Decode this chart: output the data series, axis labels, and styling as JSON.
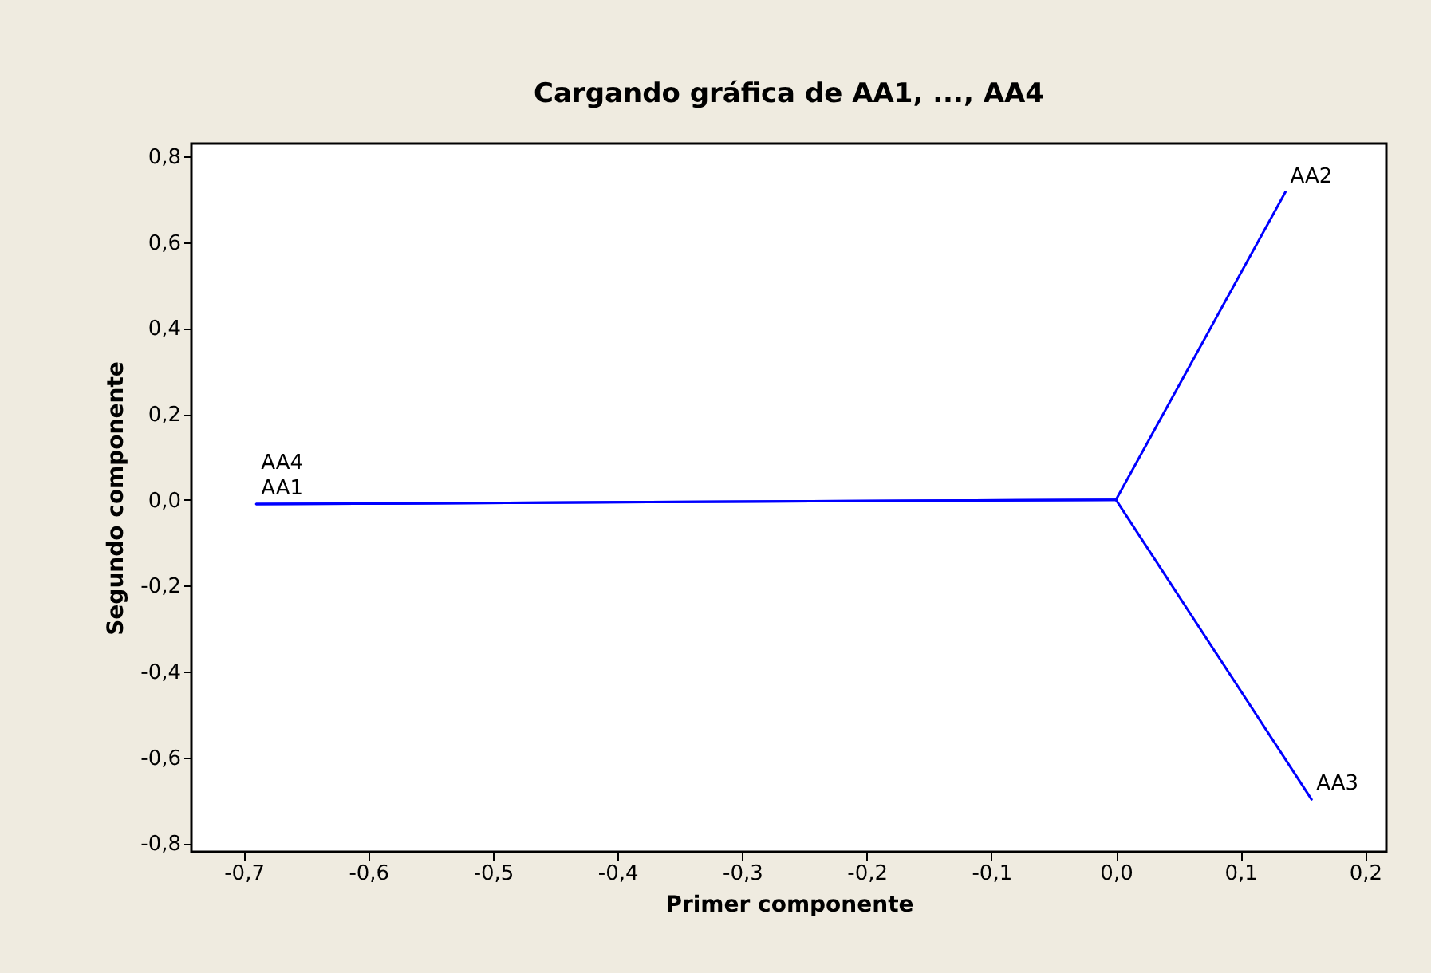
{
  "chart_data": {
    "type": "line",
    "title": "Cargando gráfica de AA1, ..., AA4",
    "xlabel": "Primer componente",
    "ylabel": "Segundo componente",
    "series": [
      {
        "color": "#0000ff",
        "x": [
          0,
          -0.69
        ],
        "values": [
          0,
          -0.01
        ]
      },
      {
        "color": "#0000ff",
        "x": [
          0,
          0.136
        ],
        "values": [
          0,
          0.717
        ]
      },
      {
        "color": "#0000ff",
        "x": [
          0,
          0.157
        ],
        "values": [
          0,
          -0.698
        ]
      },
      {
        "color": "#0000ff",
        "x": [
          0,
          -0.69
        ],
        "values": [
          0,
          -0.01
        ]
      }
    ],
    "annotations": [
      {
        "text": "AA1",
        "x": -0.69,
        "y": -0.01
      },
      {
        "text": "AA2",
        "x": 0.136,
        "y": 0.717
      },
      {
        "text": "AA3",
        "x": 0.157,
        "y": -0.698
      },
      {
        "text": "AA4",
        "x": -0.69,
        "y": -0.01
      }
    ],
    "xlim": [
      -0.742,
      0.217
    ],
    "ylim": [
      -0.82,
      0.83
    ],
    "xticks": [
      {
        "value": -0.7,
        "label": "-0,7"
      },
      {
        "value": -0.6,
        "label": "-0,6"
      },
      {
        "value": -0.5,
        "label": "-0,5"
      },
      {
        "value": -0.4,
        "label": "-0,4"
      },
      {
        "value": -0.3,
        "label": "-0,3"
      },
      {
        "value": -0.2,
        "label": "-0,2"
      },
      {
        "value": -0.1,
        "label": "-0,1"
      },
      {
        "value": 0,
        "label": "0,0"
      },
      {
        "value": 0.1,
        "label": "0,1"
      },
      {
        "value": 0.2,
        "label": "0,2"
      }
    ],
    "yticks": [
      {
        "value": -0.8,
        "label": "-0,8"
      },
      {
        "value": -0.6,
        "label": "-0,6"
      },
      {
        "value": -0.4,
        "label": "-0,4"
      },
      {
        "value": -0.2,
        "label": "-0,2"
      },
      {
        "value": 0,
        "label": "0,0"
      },
      {
        "value": 0.2,
        "label": "0,2"
      },
      {
        "value": 0.4,
        "label": "0,4"
      },
      {
        "value": 0.6,
        "label": "0,6"
      },
      {
        "value": 0.8,
        "label": "0,8"
      }
    ],
    "grid": false,
    "marker": "none",
    "line_style": "solid"
  }
}
